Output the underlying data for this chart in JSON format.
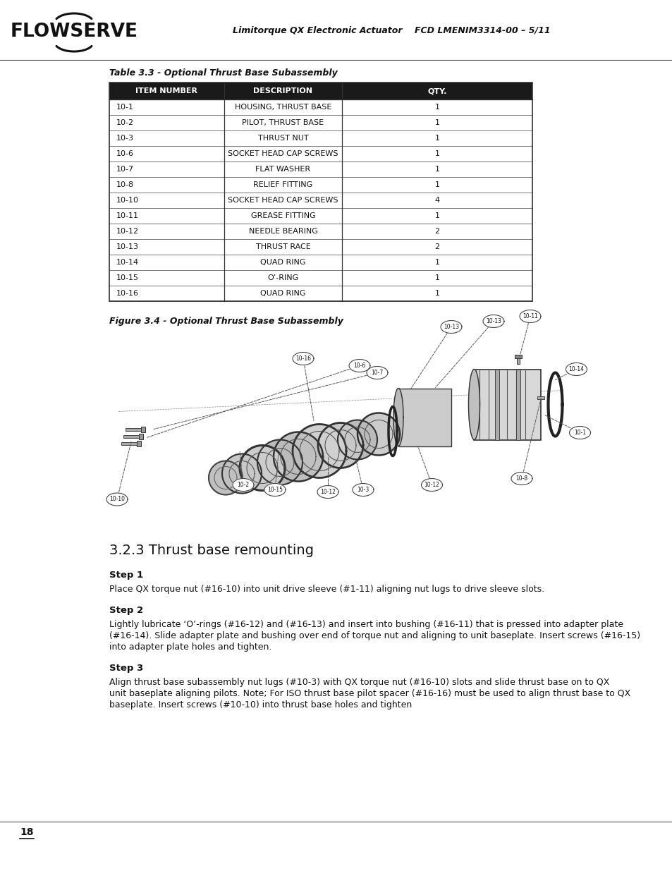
{
  "header_title": "Limitorque QX Electronic Actuator    FCD LMENIM3314-00 – 5/11",
  "table_caption": "Table 3.3 - Optional Thrust Base Subassembly",
  "table_headers": [
    "ITEM NUMBER",
    "DESCRIPTION",
    "QTY."
  ],
  "table_rows": [
    [
      "10-1",
      "HOUSING, THRUST BASE",
      "1"
    ],
    [
      "10-2",
      "PILOT, THRUST BASE",
      "1"
    ],
    [
      "10-3",
      "THRUST NUT",
      "1"
    ],
    [
      "10-6",
      "SOCKET HEAD CAP SCREWS",
      "1"
    ],
    [
      "10-7",
      "FLAT WASHER",
      "1"
    ],
    [
      "10-8",
      "RELIEF FITTING",
      "1"
    ],
    [
      "10-10",
      "SOCKET HEAD CAP SCREWS",
      "4"
    ],
    [
      "10-11",
      "GREASE FITTING",
      "1"
    ],
    [
      "10-12",
      "NEEDLE BEARING",
      "2"
    ],
    [
      "10-13",
      "THRUST RACE",
      "2"
    ],
    [
      "10-14",
      "QUAD RING",
      "1"
    ],
    [
      "10-15",
      "O’-RING",
      "1"
    ],
    [
      "10-16",
      "QUAD RING",
      "1"
    ]
  ],
  "figure_caption": "Figure 3.4 - Optional Thrust Base Subassembly",
  "section_title": "3.2.3 Thrust base remounting",
  "steps": [
    {
      "label": "Step 1",
      "text": "Place QX torque nut (#16-10) into unit drive sleeve (#1-11) aligning nut lugs to drive sleeve slots."
    },
    {
      "label": "Step 2",
      "text": "Lightly lubricate ‘O’-rings (#16-12) and (#16-13) and insert into bushing (#16-11) that is pressed into adapter plate\n(#16-14). Slide adapter plate and bushing over end of torque nut and aligning to unit baseplate. Insert screws (#16-15)\ninto adapter plate holes and tighten."
    },
    {
      "label": "Step 3",
      "text": "Align thrust base subassembly nut lugs (#10-3) with QX torque nut (#16-10) slots and slide thrust base on to QX\nunit baseplate aligning pilots. Note; For ISO thrust base pilot spacer (#16-16) must be used to align thrust base to QX\nbaseplate. Insert screws (#10-10) into thrust base holes and tighten"
    }
  ],
  "page_number": "18",
  "bg_color": "#ffffff",
  "table_header_bg": "#1a1a1a",
  "header_text_color": "#ffffff"
}
